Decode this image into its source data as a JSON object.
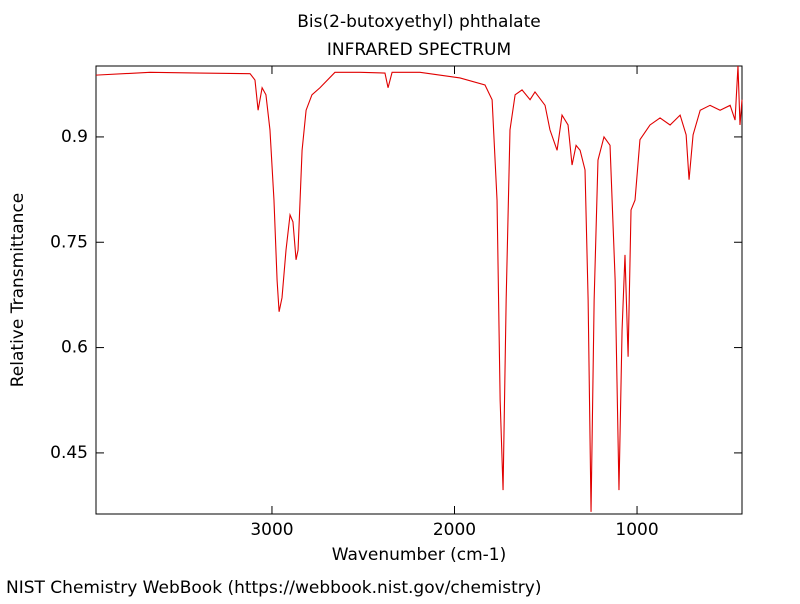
{
  "chart_data": {
    "type": "line",
    "title": "Bis(2-butoxyethyl) phthalate",
    "subtitle": "INFRARED SPECTRUM",
    "xlabel": "Wavenumber (cm-1)",
    "ylabel": "Relative Transmittance",
    "xlim": [
      3964,
      425
    ],
    "ylim": [
      0.363,
      1.001
    ],
    "xticks": [
      3000,
      2000,
      1000
    ],
    "yticks": [
      0.45,
      0.6,
      0.75,
      0.9
    ],
    "series": [
      {
        "color": "#e00000",
        "x": [
          3964,
          3668,
          3394,
          3120,
          3093,
          3076,
          3054,
          3033,
          3011,
          2989,
          2972,
          2961,
          2945,
          2923,
          2901,
          2885,
          2868,
          2857,
          2835,
          2813,
          2781,
          2737,
          2655,
          2517,
          2381,
          2364,
          2342,
          2189,
          1970,
          1833,
          1794,
          1767,
          1750,
          1734,
          1717,
          1696,
          1668,
          1630,
          1586,
          1559,
          1504,
          1477,
          1438,
          1411,
          1378,
          1356,
          1334,
          1312,
          1285,
          1268,
          1252,
          1235,
          1214,
          1181,
          1148,
          1120,
          1099,
          1082,
          1066,
          1049,
          1033,
          1011,
          984,
          929,
          874,
          819,
          764,
          731,
          715,
          693,
          654,
          600,
          545,
          490,
          463,
          447,
          436,
          425
        ],
        "values": [
          0.988,
          0.992,
          0.991,
          0.99,
          0.981,
          0.938,
          0.97,
          0.96,
          0.91,
          0.81,
          0.696,
          0.651,
          0.671,
          0.739,
          0.789,
          0.779,
          0.725,
          0.739,
          0.881,
          0.938,
          0.96,
          0.97,
          0.992,
          0.992,
          0.991,
          0.97,
          0.992,
          0.992,
          0.984,
          0.974,
          0.953,
          0.81,
          0.525,
          0.397,
          0.668,
          0.91,
          0.96,
          0.967,
          0.953,
          0.964,
          0.945,
          0.91,
          0.881,
          0.931,
          0.917,
          0.86,
          0.888,
          0.881,
          0.853,
          0.668,
          0.366,
          0.668,
          0.867,
          0.9,
          0.888,
          0.696,
          0.397,
          0.625,
          0.732,
          0.587,
          0.796,
          0.81,
          0.896,
          0.917,
          0.927,
          0.917,
          0.931,
          0.903,
          0.839,
          0.903,
          0.938,
          0.945,
          0.938,
          0.945,
          0.924,
          1.001,
          0.917,
          0.953
        ]
      }
    ]
  },
  "footer": "NIST Chemistry WebBook (https://webbook.nist.gov/chemistry)"
}
